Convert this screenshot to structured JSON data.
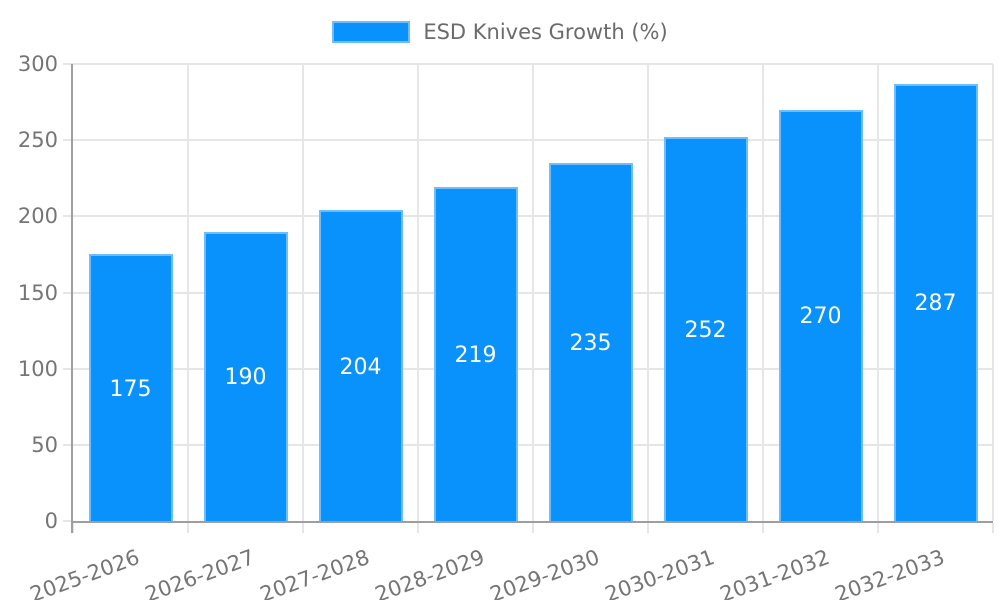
{
  "chart_data": {
    "type": "bar",
    "title": "",
    "legend_label": "ESD Knives Growth (%)",
    "legend_position": "top-center",
    "categories": [
      "2025-2026",
      "2026-2027",
      "2027-2028",
      "2028-2029",
      "2029-2030",
      "2030-2031",
      "2031-2032",
      "2032-2033"
    ],
    "series": [
      {
        "name": "ESD Knives Growth (%)",
        "values": [
          175,
          190,
          204,
          219,
          235,
          252,
          270,
          287
        ]
      }
    ],
    "value_labels": [
      "175",
      "190",
      "204",
      "219",
      "235",
      "252",
      "270",
      "287"
    ],
    "value_label_position": "center-of-bar",
    "xlabel": "",
    "ylabel": "",
    "ylim": [
      0,
      300
    ],
    "yticks": [
      0,
      50,
      100,
      150,
      200,
      250,
      300
    ],
    "grid": true,
    "x_tick_rotation_deg": -20,
    "colors": {
      "bar_fill": "#0992fb",
      "bar_border": "#6ebdfe",
      "grid": "#e6e6e6",
      "axis": "#9e9e9e",
      "tick_text": "#757575",
      "legend_text": "#6b6b6b",
      "value_text": "#ffffff",
      "background": "#ffffff"
    }
  }
}
